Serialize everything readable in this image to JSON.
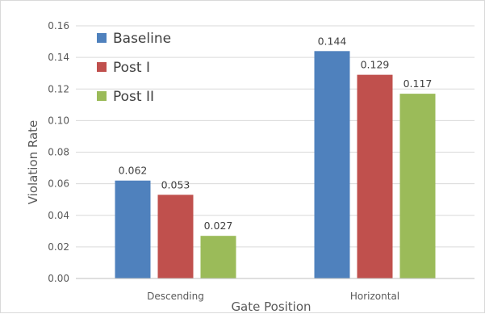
{
  "chart_data": {
    "type": "bar",
    "title": "",
    "xlabel": "Gate Position",
    "ylabel": "Violation Rate",
    "categories": [
      "Descending",
      "Horizontal"
    ],
    "series": [
      {
        "name": "Baseline",
        "values": [
          0.062,
          0.144
        ],
        "labels": [
          "0.062",
          "0.144"
        ],
        "color": "#4f81bd"
      },
      {
        "name": "Post I",
        "values": [
          0.053,
          0.129
        ],
        "labels": [
          "0.053",
          "0.129"
        ],
        "color": "#c0504d"
      },
      {
        "name": "Post II",
        "values": [
          0.027,
          0.117
        ],
        "labels": [
          "0.027",
          "0.117"
        ],
        "color": "#9bbb59"
      }
    ],
    "ylim": [
      0,
      0.16
    ],
    "yticks": [
      "0.00",
      "0.02",
      "0.04",
      "0.06",
      "0.08",
      "0.10",
      "0.12",
      "0.14",
      "0.16"
    ],
    "grid": true,
    "legend_position": "top-left"
  }
}
